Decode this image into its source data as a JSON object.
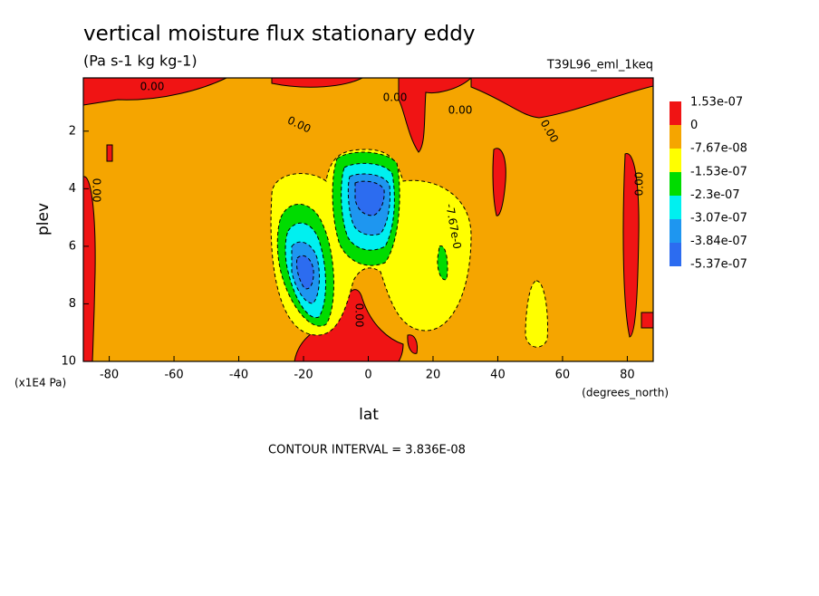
{
  "chart_data": {
    "type": "contour",
    "title": "vertical moisture flux stationary eddy",
    "subtitle": "(Pa s-1 kg kg-1)",
    "run_label": "T39L96_eml_1keq",
    "x_label": "lat",
    "x_units": "(degrees_north)",
    "y_label": "plev",
    "y_units": "(x1E4 Pa)",
    "footer": "CONTOUR INTERVAL = 3.836E-08",
    "xlim": [
      -88,
      88
    ],
    "xticks": [
      -80,
      -60,
      -40,
      -20,
      0,
      20,
      40,
      60,
      80
    ],
    "ylim": [
      10,
      0.15
    ],
    "yticks": [
      2,
      4,
      6,
      8,
      10
    ],
    "levels": [
      {
        "value": 1.53e-07,
        "label": "1.53e-07"
      },
      0,
      {
        "value": -7.67e-08,
        "label": "-7.67e-08"
      },
      {
        "value": -1.53e-07,
        "label": "-1.53e-07"
      },
      {
        "value": -2.3e-07,
        "label": "-2.3e-07"
      },
      {
        "value": -3.07e-07,
        "label": "-3.07e-07"
      },
      {
        "value": -3.84e-07,
        "label": "-3.84e-07"
      },
      {
        "value": -5.37e-07,
        "label": "-5.37e-07"
      }
    ],
    "colors": [
      "#f01414",
      "#f5a500",
      "#ffff00",
      "#00dc00",
      "#00f0f0",
      "#1e96f0",
      "#2c6cf0"
    ],
    "contour_labels": [
      "0.00",
      "-7.67e-0"
    ]
  }
}
